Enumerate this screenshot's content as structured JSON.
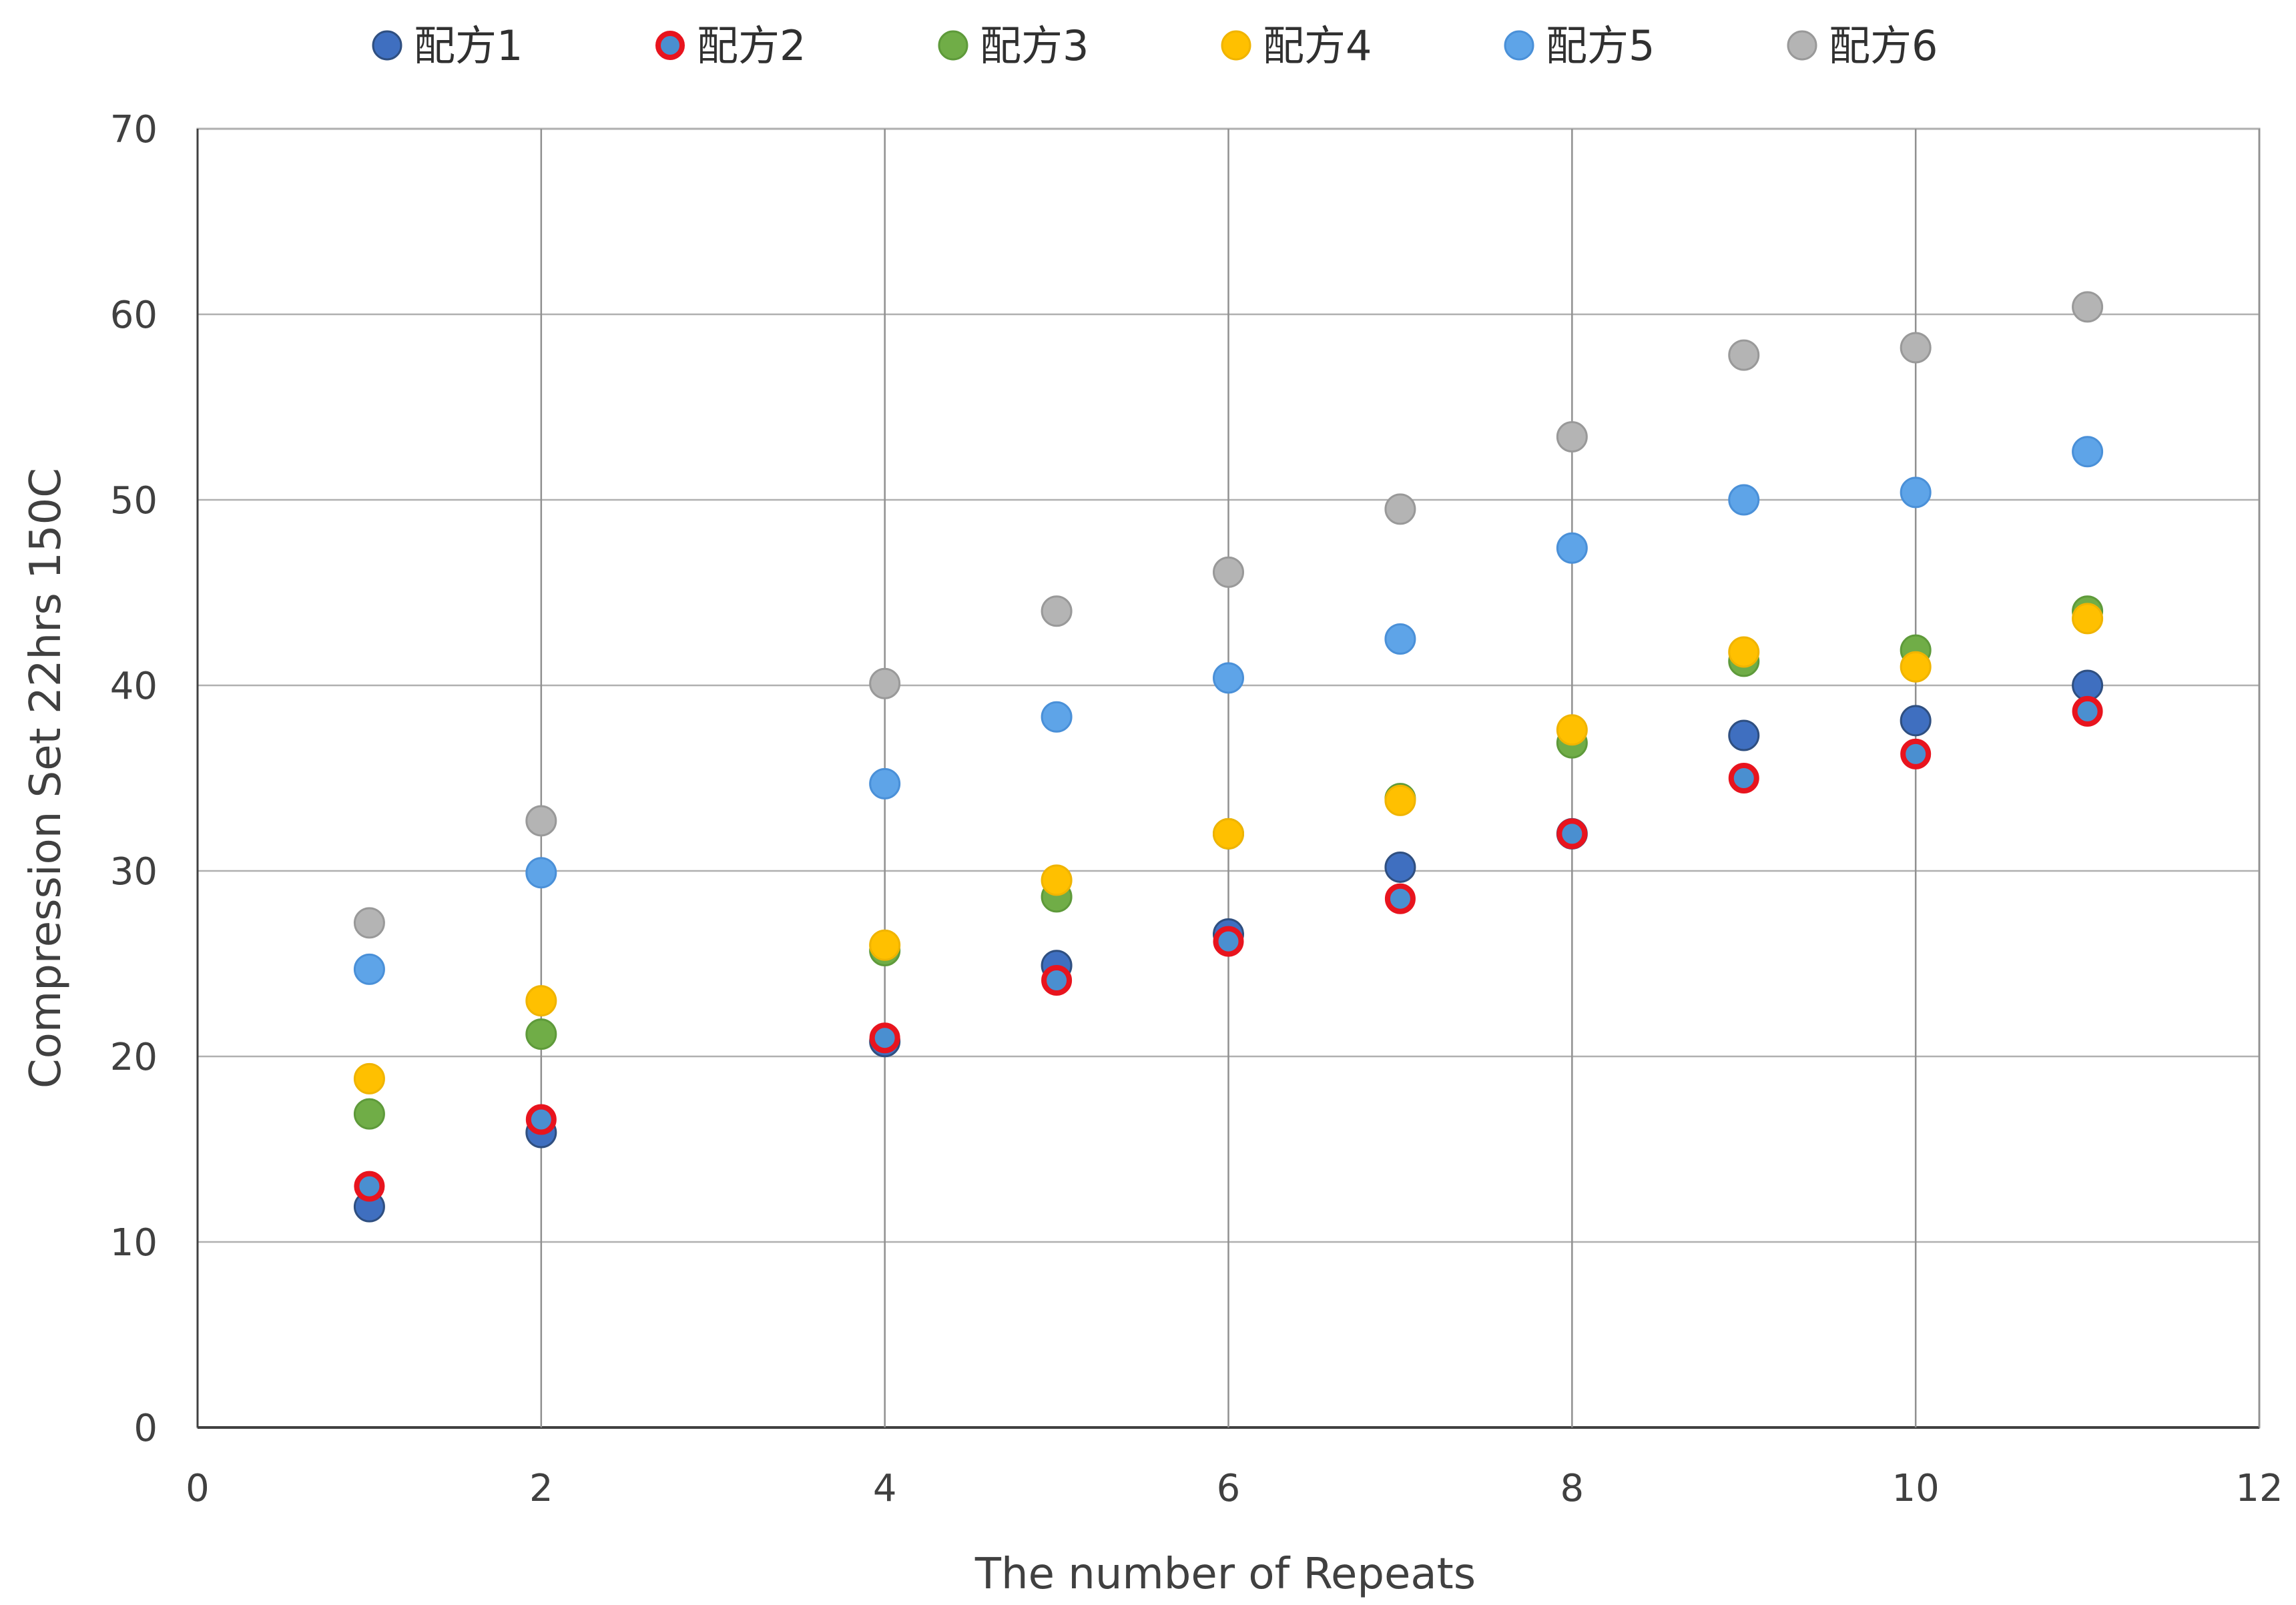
{
  "chart_data": {
    "type": "scatter",
    "title": "",
    "xlabel": "The number of Repeats",
    "ylabel": "Compression Set 22hrs 150C",
    "xlim": [
      0,
      12
    ],
    "ylim": [
      0,
      70
    ],
    "xticks": [
      0,
      2,
      4,
      6,
      8,
      10,
      12
    ],
    "yticks": [
      0,
      10,
      20,
      30,
      40,
      50,
      60,
      70
    ],
    "grid": true,
    "legend_position": "top",
    "x": [
      1,
      2,
      4,
      5,
      6,
      7,
      8,
      9,
      10,
      11
    ],
    "series": [
      {
        "name": "配方1",
        "color": "#3f6fc0",
        "edge": "#2f4f80",
        "values": [
          11.9,
          15.9,
          20.8,
          24.9,
          26.6,
          30.2,
          32.0,
          37.3,
          38.1,
          40.0
        ]
      },
      {
        "name": "配方2",
        "color": "#4a8fd0",
        "edge": "#e8141e",
        "values": [
          13.0,
          16.6,
          21.0,
          24.1,
          26.2,
          28.5,
          32.0,
          35.0,
          36.3,
          38.6
        ]
      },
      {
        "name": "配方3",
        "color": "#70ad47",
        "edge": "#5e9a3a",
        "values": [
          16.9,
          21.2,
          25.7,
          28.6,
          32.0,
          33.9,
          36.9,
          41.3,
          41.9,
          44.0
        ]
      },
      {
        "name": "配方4",
        "color": "#ffc000",
        "edge": "#f0b400",
        "values": [
          18.8,
          23.0,
          26.0,
          29.5,
          32.0,
          33.8,
          37.6,
          41.8,
          41.0,
          43.6
        ]
      },
      {
        "name": "配方5",
        "color": "#5ea4e8",
        "edge": "#4a90d8",
        "values": [
          24.7,
          29.9,
          34.7,
          38.3,
          40.4,
          42.5,
          47.4,
          50.0,
          50.4,
          52.6
        ]
      },
      {
        "name": "配方6",
        "color": "#b4b4b4",
        "edge": "#999999",
        "values": [
          27.2,
          32.7,
          40.1,
          44.0,
          46.1,
          49.5,
          53.4,
          57.8,
          58.2,
          60.4
        ]
      }
    ]
  }
}
